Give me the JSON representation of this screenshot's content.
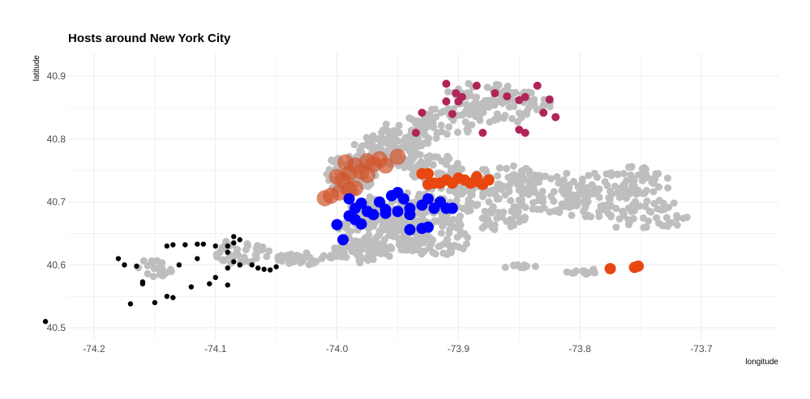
{
  "chart_data": {
    "type": "scatter",
    "title": "Hosts around New York City",
    "xlabel": "longitude",
    "ylabel": "latitude",
    "xlim": [
      -74.26,
      -73.69
    ],
    "ylim": [
      40.48,
      40.935
    ],
    "x_ticks": [
      -74.2,
      -74.1,
      -74.0,
      -73.9,
      -73.8,
      -73.7
    ],
    "x_tick_labels": [
      "-74.2",
      "-74.1",
      "-74.0",
      "-73.9",
      "-73.8",
      "-73.7"
    ],
    "y_ticks": [
      40.5,
      40.6,
      40.7,
      40.8,
      40.9
    ],
    "y_tick_labels": [
      "40.5",
      "40.6",
      "40.7",
      "40.8",
      "40.9"
    ],
    "grid": true,
    "legend": "none",
    "colors": {
      "background_points": "#bebebe",
      "staten_island": "#000000",
      "manhattan": "#d2552e",
      "brooklyn": "#0000ff",
      "queens": "#e8470f",
      "bronx": "#b0245a"
    },
    "series": [
      {
        "color": "#d2552e",
        "points": [
          [
            -74.01,
            40.706
          ],
          [
            -74.005,
            40.71
          ],
          [
            -73.998,
            40.715
          ],
          [
            -73.99,
            40.72
          ],
          [
            -73.985,
            40.722
          ],
          [
            -73.995,
            40.735
          ],
          [
            -73.99,
            40.745
          ],
          [
            -73.98,
            40.748
          ],
          [
            -73.975,
            40.743
          ],
          [
            -74.0,
            40.74
          ],
          [
            -73.985,
            40.758
          ],
          [
            -73.993,
            40.763
          ],
          [
            -73.975,
            40.765
          ],
          [
            -73.965,
            40.768
          ],
          [
            -73.96,
            40.758
          ],
          [
            -73.95,
            40.772
          ],
          [
            -73.97,
            40.76
          ]
        ]
      },
      {
        "color": "#0000ff",
        "points": [
          [
            -73.99,
            40.705
          ],
          [
            -73.985,
            40.69
          ],
          [
            -73.98,
            40.698
          ],
          [
            -73.975,
            40.685
          ],
          [
            -73.965,
            40.7
          ],
          [
            -73.955,
            40.71
          ],
          [
            -73.95,
            40.715
          ],
          [
            -73.945,
            40.705
          ],
          [
            -73.96,
            40.688
          ],
          [
            -73.94,
            40.69
          ],
          [
            -73.93,
            40.695
          ],
          [
            -73.925,
            40.705
          ],
          [
            -73.915,
            40.7
          ],
          [
            -73.91,
            40.69
          ],
          [
            -73.905,
            40.69
          ],
          [
            -73.92,
            40.69
          ],
          [
            -73.99,
            40.678
          ],
          [
            -73.985,
            40.672
          ],
          [
            -73.98,
            40.665
          ],
          [
            -73.97,
            40.68
          ],
          [
            -74.0,
            40.664
          ],
          [
            -73.995,
            40.64
          ],
          [
            -73.94,
            40.656
          ],
          [
            -73.93,
            40.658
          ],
          [
            -73.925,
            40.66
          ],
          [
            -73.95,
            40.685
          ],
          [
            -73.94,
            40.68
          ],
          [
            -73.96,
            40.682
          ]
        ]
      },
      {
        "color": "#e8470f",
        "points": [
          [
            -73.93,
            40.745
          ],
          [
            -73.925,
            40.745
          ],
          [
            -73.92,
            40.73
          ],
          [
            -73.91,
            40.735
          ],
          [
            -73.9,
            40.738
          ],
          [
            -73.895,
            40.735
          ],
          [
            -73.885,
            40.733
          ],
          [
            -73.875,
            40.735
          ],
          [
            -73.88,
            40.728
          ],
          [
            -73.885,
            40.74
          ],
          [
            -73.925,
            40.728
          ],
          [
            -73.905,
            40.73
          ],
          [
            -73.915,
            40.73
          ],
          [
            -73.89,
            40.73
          ],
          [
            -73.775,
            40.594
          ],
          [
            -73.755,
            40.596
          ],
          [
            -73.752,
            40.598
          ]
        ]
      },
      {
        "color": "#b0245a",
        "points": [
          [
            -73.91,
            40.888
          ],
          [
            -73.885,
            40.885
          ],
          [
            -73.835,
            40.885
          ],
          [
            -73.902,
            40.873
          ],
          [
            -73.897,
            40.867
          ],
          [
            -73.87,
            40.873
          ],
          [
            -73.86,
            40.868
          ],
          [
            -73.85,
            40.862
          ],
          [
            -73.845,
            40.867
          ],
          [
            -73.825,
            40.863
          ],
          [
            -73.93,
            40.842
          ],
          [
            -73.91,
            40.86
          ],
          [
            -73.9,
            40.86
          ],
          [
            -73.905,
            40.84
          ],
          [
            -73.88,
            40.81
          ],
          [
            -73.85,
            40.815
          ],
          [
            -73.845,
            40.81
          ],
          [
            -73.83,
            40.842
          ],
          [
            -73.82,
            40.835
          ],
          [
            -73.935,
            40.81
          ]
        ]
      },
      {
        "color": "#000000",
        "points": [
          [
            -74.24,
            40.51
          ],
          [
            -74.17,
            40.538
          ],
          [
            -74.15,
            40.54
          ],
          [
            -74.16,
            40.573
          ],
          [
            -74.165,
            40.598
          ],
          [
            -74.175,
            40.6
          ],
          [
            -74.18,
            40.61
          ],
          [
            -74.14,
            40.63
          ],
          [
            -74.135,
            40.632
          ],
          [
            -74.125,
            40.632
          ],
          [
            -74.115,
            40.633
          ],
          [
            -74.11,
            40.633
          ],
          [
            -74.1,
            40.63
          ],
          [
            -74.09,
            40.63
          ],
          [
            -74.085,
            40.635
          ],
          [
            -74.08,
            40.64
          ],
          [
            -74.085,
            40.645
          ],
          [
            -74.09,
            40.62
          ],
          [
            -74.085,
            40.605
          ],
          [
            -74.08,
            40.6
          ],
          [
            -74.07,
            40.6
          ],
          [
            -74.065,
            40.595
          ],
          [
            -74.06,
            40.593
          ],
          [
            -74.055,
            40.592
          ],
          [
            -74.05,
            40.597
          ],
          [
            -74.09,
            40.595
          ],
          [
            -74.115,
            40.61
          ],
          [
            -74.13,
            40.6
          ],
          [
            -74.1,
            40.58
          ],
          [
            -74.105,
            40.57
          ],
          [
            -74.12,
            40.565
          ],
          [
            -74.135,
            40.548
          ],
          [
            -74.14,
            40.55
          ],
          [
            -74.16,
            40.57
          ],
          [
            -74.09,
            40.568
          ]
        ]
      }
    ]
  }
}
